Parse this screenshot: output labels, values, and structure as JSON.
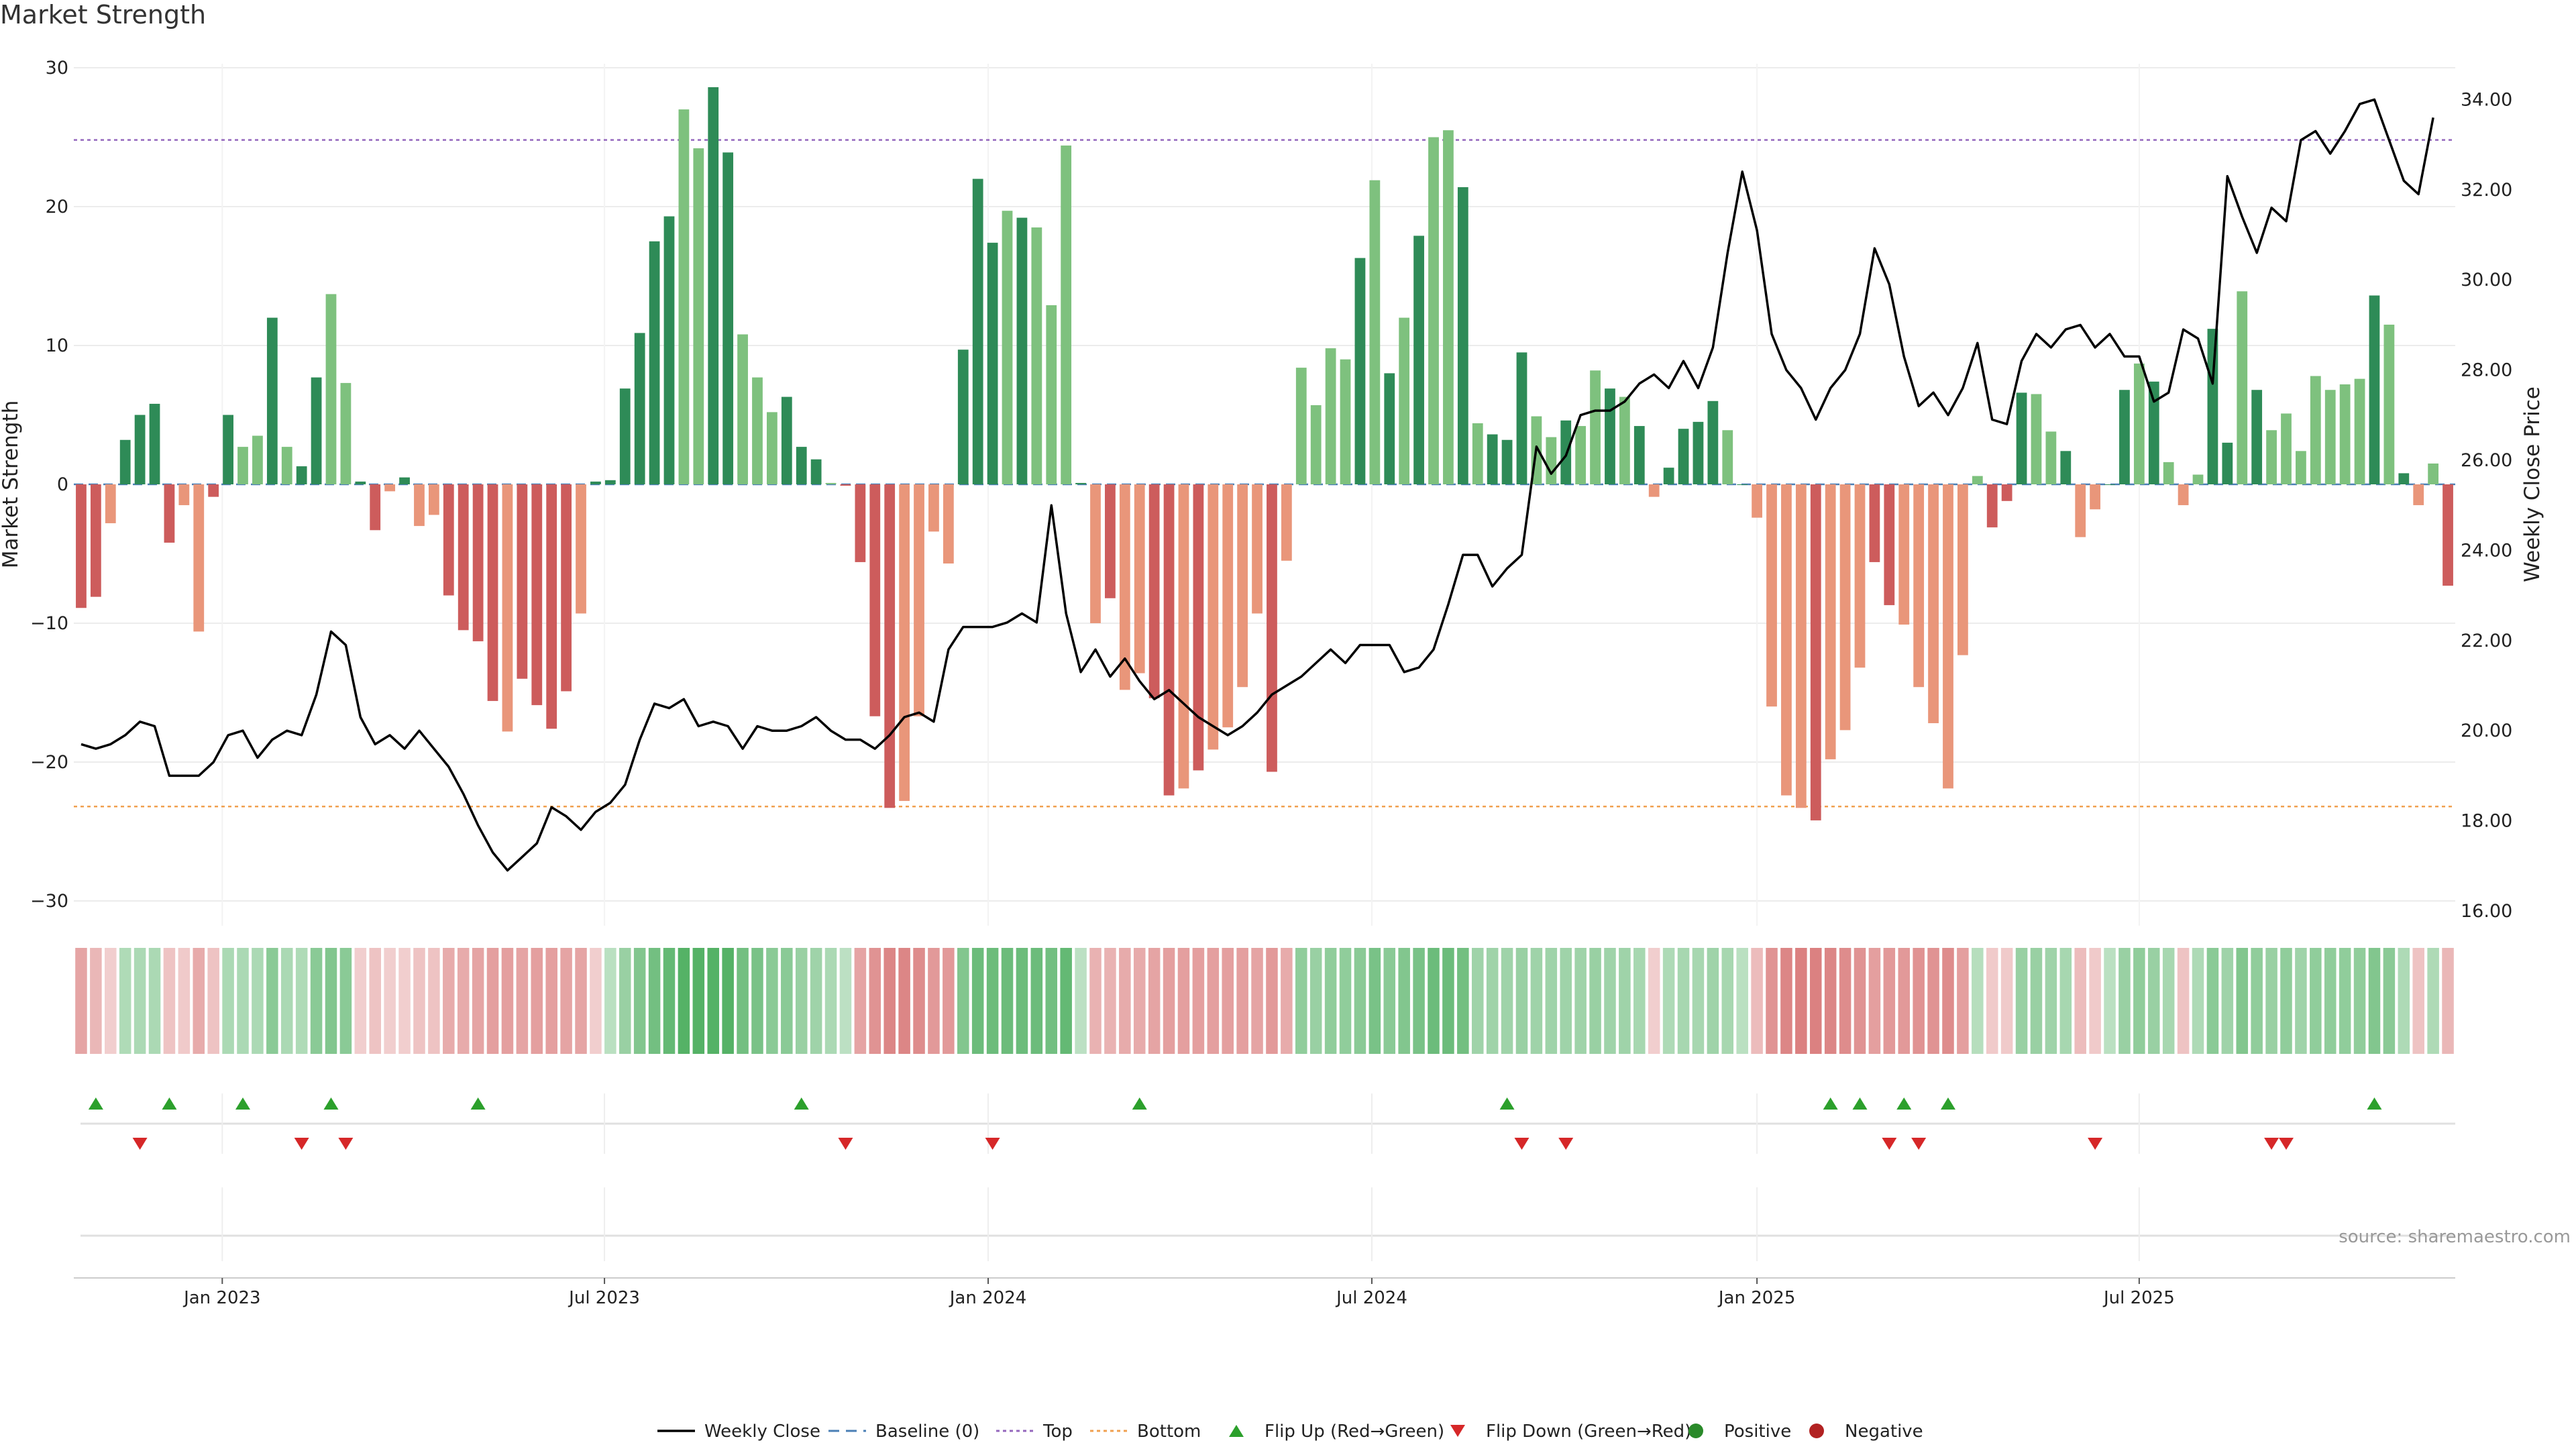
{
  "title": "Market Strength",
  "source_note": "source: sharemaestro.com",
  "chart_data": {
    "type": "bar",
    "title": "Market Strength",
    "ylabel": "Market Strength",
    "y2label": "Weekly Close Price",
    "ylim": [
      -30,
      30
    ],
    "y2lim": [
      16,
      34
    ],
    "yticks": [
      30,
      20,
      10,
      0,
      -10,
      -20,
      -30
    ],
    "y2ticks": [
      "34.00",
      "32.00",
      "30.00",
      "28.00",
      "26.00",
      "24.00",
      "22.00",
      "20.00",
      "18.00",
      "16.00"
    ],
    "top_level": 24.8,
    "bottom_level": -23.2,
    "baseline": 0,
    "x_tick_labels": [
      "Jan 2023",
      "Jul 2023",
      "Jan 2024",
      "Jul 2024",
      "Jan 2025",
      "Jul 2025"
    ],
    "x_tick_weeks": [
      9.6,
      35.6,
      61.7,
      87.8,
      114.0,
      140.0
    ],
    "strength": [
      -8.9,
      -8.1,
      -2.8,
      3.2,
      5.0,
      5.8,
      -4.2,
      -1.5,
      -10.6,
      -0.9,
      5.0,
      2.7,
      3.5,
      12.0,
      2.7,
      1.3,
      7.7,
      13.7,
      7.3,
      0.2,
      -3.3,
      -0.5,
      0.5,
      -3.0,
      -2.2,
      -8.0,
      -10.5,
      -11.3,
      -15.6,
      -17.8,
      -14.0,
      -15.9,
      -17.6,
      -14.9,
      -9.3,
      0.2,
      0.3,
      6.9,
      10.9,
      17.5,
      19.3,
      27.0,
      24.2,
      28.6,
      23.9,
      10.8,
      7.7,
      5.2,
      6.3,
      2.7,
      1.8,
      0.1,
      -0.1,
      -5.6,
      -16.7,
      -23.3,
      -22.8,
      -16.7,
      -3.4,
      -5.7,
      9.7,
      22.0,
      17.4,
      19.7,
      19.2,
      18.5,
      12.9,
      24.4,
      0.1,
      -10.0,
      -8.2,
      -14.8,
      -13.6,
      -15.4,
      -22.4,
      -21.9,
      -20.6,
      -19.1,
      -17.5,
      -14.6,
      -9.3,
      -20.7,
      -5.5,
      8.4,
      5.7,
      9.8,
      9.0,
      16.3,
      21.9,
      8.0,
      12.0,
      17.9,
      25.0,
      25.5,
      21.4,
      4.4,
      3.6,
      3.2,
      9.5,
      4.9,
      3.4,
      4.6,
      4.2,
      8.2,
      6.9,
      6.3,
      4.2,
      -0.9,
      1.2,
      4.0,
      4.5,
      6.0,
      3.9,
      0.0,
      -2.4,
      -16.0,
      -22.4,
      -23.3,
      -24.2,
      -19.8,
      -17.7,
      -13.2,
      -5.6,
      -8.7,
      -10.1,
      -14.6,
      -17.2,
      -21.9,
      -12.3,
      0.6,
      -3.1,
      -1.2,
      6.6,
      6.5,
      3.8,
      2.4,
      -3.8,
      -1.8,
      0.0,
      6.8,
      8.7,
      7.4,
      1.6,
      -1.5,
      0.7,
      11.2,
      3.0,
      13.9,
      6.8,
      3.9,
      5.1,
      2.4,
      7.8,
      6.8,
      7.2,
      7.6,
      13.6,
      11.5,
      0.8,
      -1.5,
      1.5,
      -7.3
    ],
    "weekly_close": [
      19.7,
      19.6,
      19.7,
      19.9,
      20.2,
      20.1,
      19.0,
      19.0,
      19.0,
      19.3,
      19.9,
      20.0,
      19.4,
      19.8,
      20.0,
      19.9,
      20.8,
      22.2,
      21.9,
      20.3,
      19.7,
      19.9,
      19.6,
      20.0,
      19.6,
      19.2,
      18.6,
      17.9,
      17.3,
      16.9,
      17.2,
      17.5,
      18.3,
      18.1,
      17.8,
      18.2,
      18.4,
      18.8,
      19.8,
      20.6,
      20.5,
      20.7,
      20.1,
      20.2,
      20.1,
      19.6,
      20.1,
      20.0,
      20.0,
      20.1,
      20.3,
      20.0,
      19.8,
      19.8,
      19.6,
      19.9,
      20.3,
      20.4,
      20.2,
      21.8,
      22.3,
      22.3,
      22.3,
      22.4,
      22.6,
      22.4,
      25.0,
      22.6,
      21.3,
      21.8,
      21.2,
      21.6,
      21.1,
      20.7,
      20.9,
      20.6,
      20.3,
      20.1,
      19.9,
      20.1,
      20.4,
      20.8,
      21.0,
      21.2,
      21.5,
      21.8,
      21.5,
      21.9,
      21.9,
      21.9,
      21.3,
      21.4,
      21.8,
      22.8,
      23.9,
      23.9,
      23.2,
      23.6,
      23.9,
      26.3,
      25.7,
      26.1,
      27.0,
      27.1,
      27.1,
      27.3,
      27.7,
      27.9,
      27.6,
      28.2,
      27.6,
      28.5,
      30.6,
      32.4,
      31.1,
      28.8,
      28.0,
      27.6,
      26.9,
      27.6,
      28.0,
      28.8,
      30.7,
      29.9,
      28.3,
      27.2,
      27.5,
      27.0,
      27.6,
      28.6,
      26.9,
      26.8,
      28.2,
      28.8,
      28.5,
      28.9,
      29.0,
      28.5,
      28.8,
      28.3,
      28.3,
      27.3,
      27.5,
      28.9,
      28.7,
      27.7,
      32.3,
      31.4,
      30.6,
      31.6,
      31.3,
      33.1,
      33.3,
      32.8,
      33.3,
      33.9,
      34.0,
      33.1,
      32.2,
      31.9,
      33.6
    ],
    "bar_style": [
      {
        "key": "pos_dark",
        "color": "#2e8b57"
      },
      {
        "key": "pos_light",
        "color": "#7ec17e"
      },
      {
        "key": "neg_dark",
        "color": "#cd5c5c"
      },
      {
        "key": "neg_light",
        "color": "#e9967a"
      }
    ],
    "bar_shade": "ddnddddnnddnndnddnnddndnnddddnddddnddddddnnddnnndddnddddnnnndddndnnndndnnddndnnnndnnnnndndndnndndddnndnndndnddddndnnnndnnnddnnnnnndddnndnnddndnnnddndnnnnnnndndnndndddnnnndnnd",
    "heat_strip": [
      -0.45,
      -0.3,
      -0.12,
      0.18,
      0.22,
      0.22,
      -0.2,
      -0.15,
      -0.4,
      -0.2,
      0.22,
      0.22,
      0.22,
      0.45,
      0.22,
      0.18,
      0.45,
      0.5,
      0.45,
      -0.12,
      -0.2,
      -0.12,
      -0.12,
      -0.2,
      -0.2,
      -0.4,
      -0.4,
      -0.45,
      -0.5,
      -0.5,
      -0.45,
      -0.5,
      -0.5,
      -0.45,
      -0.45,
      -0.12,
      0.12,
      0.35,
      0.5,
      0.6,
      0.7,
      0.8,
      0.8,
      0.8,
      0.8,
      0.6,
      0.55,
      0.45,
      0.45,
      0.35,
      0.3,
      0.22,
      0.1,
      -0.45,
      -0.6,
      -0.7,
      -0.7,
      -0.65,
      -0.55,
      -0.55,
      0.5,
      0.65,
      0.65,
      0.65,
      0.65,
      0.65,
      0.6,
      0.7,
      0.1,
      -0.35,
      -0.35,
      -0.4,
      -0.4,
      -0.45,
      -0.5,
      -0.5,
      -0.5,
      -0.5,
      -0.5,
      -0.5,
      -0.45,
      -0.55,
      -0.4,
      0.4,
      0.35,
      0.4,
      0.4,
      0.45,
      0.55,
      0.45,
      0.5,
      0.55,
      0.65,
      0.65,
      0.6,
      0.3,
      0.3,
      0.3,
      0.35,
      0.3,
      0.3,
      0.3,
      0.3,
      0.35,
      0.3,
      0.3,
      0.25,
      -0.12,
      0.2,
      0.25,
      0.25,
      0.3,
      0.25,
      0.12,
      -0.25,
      -0.6,
      -0.7,
      -0.75,
      -0.75,
      -0.7,
      -0.65,
      -0.6,
      -0.5,
      -0.55,
      -0.55,
      -0.6,
      -0.6,
      -0.65,
      -0.5,
      0.15,
      -0.15,
      -0.15,
      0.35,
      0.35,
      0.3,
      0.25,
      -0.25,
      -0.15,
      0.12,
      0.35,
      0.4,
      0.35,
      0.25,
      -0.2,
      0.2,
      0.45,
      0.3,
      0.5,
      0.4,
      0.35,
      0.4,
      0.3,
      0.4,
      0.4,
      0.4,
      0.4,
      0.5,
      0.45,
      0.2,
      -0.2,
      0.2,
      -0.3
    ],
    "flip_up_weeks": [
      1,
      6,
      11,
      17,
      27,
      49,
      72,
      97,
      119,
      121,
      124,
      127,
      156
    ],
    "flip_down_weeks": [
      4,
      15,
      18,
      52,
      62,
      98,
      101,
      123,
      125,
      137,
      149,
      150
    ],
    "legend": [
      {
        "label": "Weekly Close",
        "symbol": "line",
        "color": "#000000"
      },
      {
        "label": "Baseline (0)",
        "symbol": "dash",
        "color": "#1f77b4"
      },
      {
        "label": "Top",
        "symbol": "dot",
        "color": "#9467bd"
      },
      {
        "label": "Bottom",
        "symbol": "dot",
        "color": "#ff7f0e"
      },
      {
        "label": "Flip Up (Red→Green)",
        "symbol": "tri-up",
        "color": "#2ca02c"
      },
      {
        "label": "Flip Down (Green→Red)",
        "symbol": "tri-down",
        "color": "#d62728"
      },
      {
        "label": "Positive",
        "symbol": "circle",
        "color": "#2a8a2a"
      },
      {
        "label": "Negative",
        "symbol": "circle",
        "color": "#b22222"
      }
    ],
    "legend_placement": "bottom-center",
    "grid": true
  }
}
